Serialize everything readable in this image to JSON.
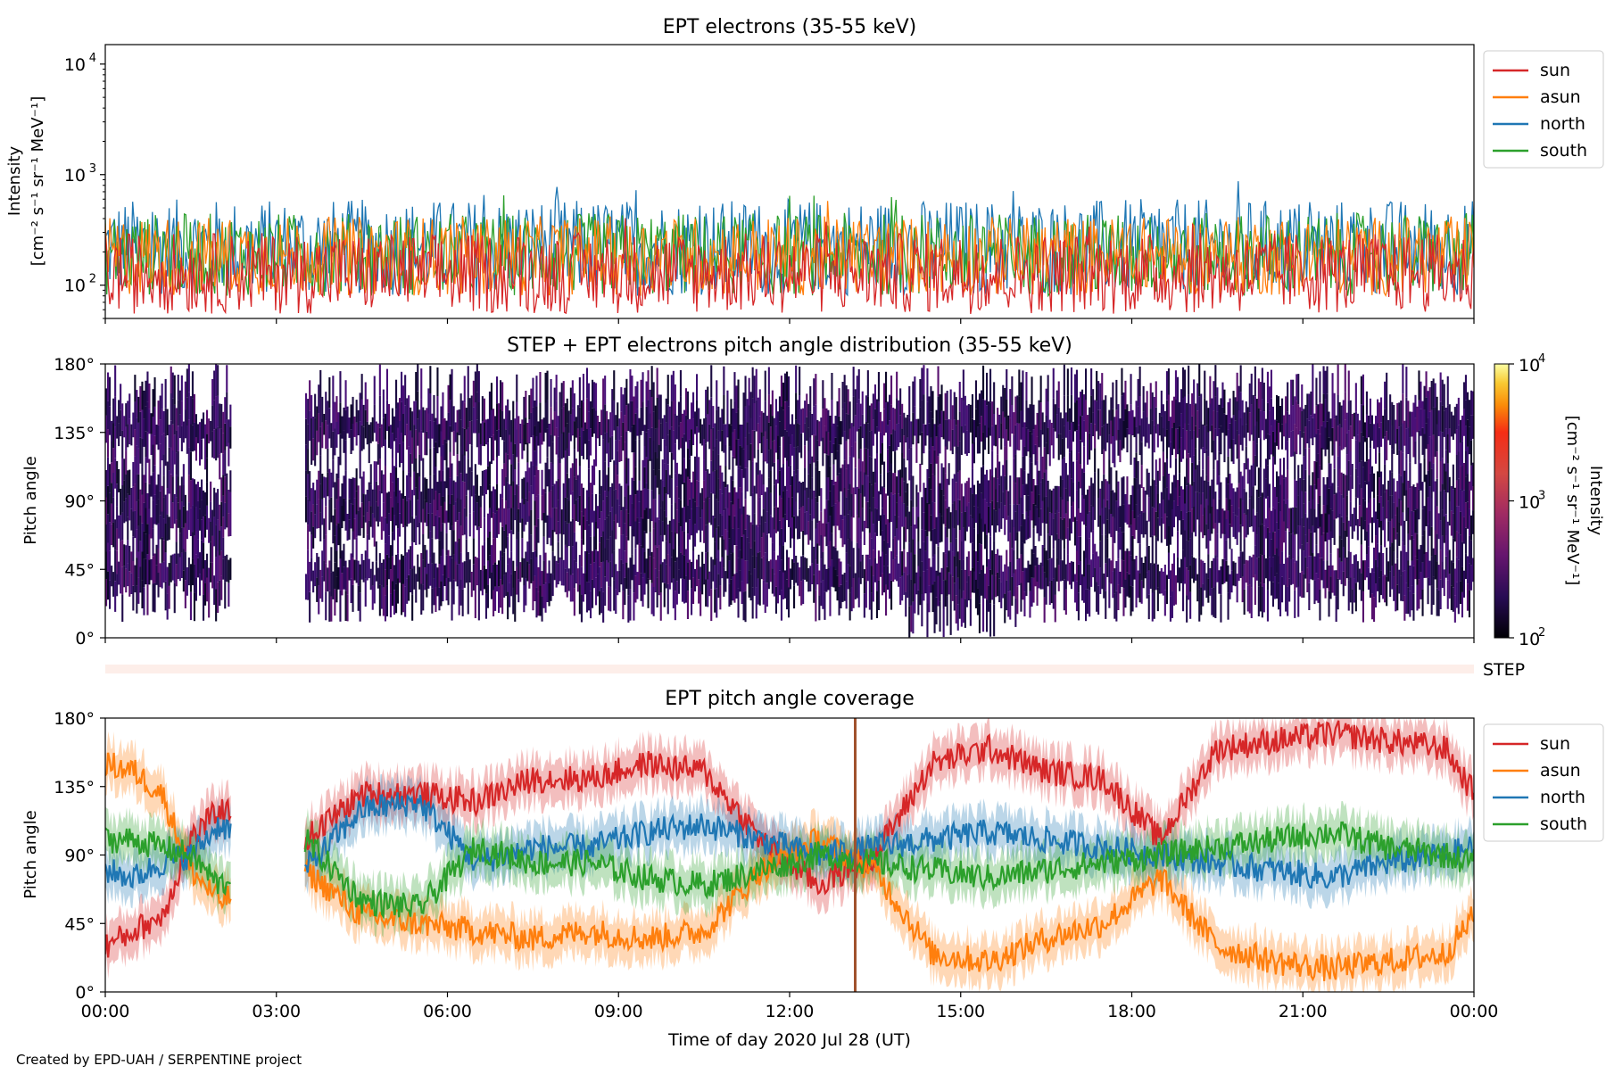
{
  "chart_data": [
    {
      "type": "line",
      "title": "EPT electrons (35-55 keV)",
      "ylabel_line1": "Intensity",
      "ylabel_line2": "[cm⁻² s⁻¹ sr⁻¹ MeV⁻¹]",
      "yscale": "log",
      "ylim": [
        50,
        15000
      ],
      "yticks": [
        {
          "value": 100,
          "base": "10",
          "exp": "2"
        },
        {
          "value": 1000,
          "base": "10",
          "exp": "3"
        },
        {
          "value": 10000,
          "base": "10",
          "exp": "4"
        }
      ],
      "x_range": [
        "2020-07-28 00:00",
        "2020-07-29 00:00"
      ],
      "legend_position": "outside-right",
      "series": [
        {
          "name": "sun",
          "color": "#d62728",
          "typical_range": [
            55,
            300
          ]
        },
        {
          "name": "asun",
          "color": "#ff7f0e",
          "typical_range": [
            80,
            420
          ]
        },
        {
          "name": "north",
          "color": "#1f77b4",
          "typical_range": [
            80,
            600
          ]
        },
        {
          "name": "south",
          "color": "#2ca02c",
          "typical_range": [
            80,
            450
          ]
        }
      ],
      "data_gap": null
    },
    {
      "type": "heatmap",
      "title": "STEP + EPT electrons pitch angle distribution (35-55 keV)",
      "ylabel": "Pitch angle",
      "ylim": [
        0,
        180
      ],
      "yticks": [
        "0°",
        "45°",
        "90°",
        "135°",
        "180°"
      ],
      "colorbar": {
        "label_line1": "Intensity",
        "label_line2": "[cm⁻² s⁻¹ sr⁻¹ MeV⁻¹]",
        "scale": "log",
        "range": [
          100,
          10000
        ],
        "ticks": [
          {
            "value": 100,
            "base": "10",
            "exp": "2"
          },
          {
            "value": 1000,
            "base": "10",
            "exp": "3"
          },
          {
            "value": 10000,
            "base": "10",
            "exp": "4"
          }
        ],
        "colormap": "inferno"
      },
      "data_gap_hours": [
        2.2,
        3.5
      ]
    },
    {
      "type": "bar",
      "label": "STEP",
      "color": "#fdeee9"
    },
    {
      "type": "line",
      "title": "EPT pitch angle coverage",
      "ylabel": "Pitch angle",
      "xlabel": "Time of day 2020 Jul 28 (UT)",
      "ylim": [
        0,
        180
      ],
      "yticks": [
        "0°",
        "45°",
        "90°",
        "135°",
        "180°"
      ],
      "xticks": [
        "00:00",
        "03:00",
        "06:00",
        "09:00",
        "12:00",
        "15:00",
        "18:00",
        "21:00",
        "00:00"
      ],
      "legend_position": "outside-right",
      "data_gap_hours": [
        2.2,
        3.5
      ],
      "marker_hour": 13.15,
      "series": [
        {
          "name": "sun",
          "color": "#d62728",
          "x_hours": [
            0,
            0.5,
            1,
            1.5,
            2,
            3.5,
            4.5,
            5.5,
            6.5,
            7.5,
            8.5,
            9.5,
            10.5,
            11.5,
            12.5,
            13.5,
            14.5,
            15.5,
            16.5,
            17.5,
            18.5,
            19.5,
            20.5,
            21.5,
            22.5,
            23.5,
            24
          ],
          "values": [
            30,
            40,
            50,
            100,
            120,
            100,
            130,
            130,
            125,
            140,
            140,
            150,
            145,
            100,
            70,
            90,
            150,
            160,
            145,
            140,
            100,
            160,
            165,
            170,
            165,
            160,
            130
          ]
        },
        {
          "name": "asun",
          "color": "#ff7f0e",
          "x_hours": [
            0,
            0.5,
            1,
            1.5,
            2,
            3.5,
            4.5,
            5.5,
            6.5,
            7.5,
            8.5,
            9.5,
            10.5,
            11.5,
            12.5,
            13.5,
            14.5,
            15.5,
            16.5,
            17.5,
            18.5,
            19.5,
            20.5,
            21.5,
            22.5,
            23.5,
            24
          ],
          "values": [
            150,
            145,
            130,
            80,
            60,
            80,
            50,
            45,
            40,
            35,
            40,
            35,
            40,
            80,
            100,
            80,
            25,
            20,
            35,
            45,
            75,
            30,
            20,
            15,
            20,
            25,
            50
          ]
        },
        {
          "name": "north",
          "color": "#1f77b4",
          "x_hours": [
            0,
            0.5,
            1,
            1.5,
            2,
            3.5,
            4.5,
            5.5,
            6.5,
            7.5,
            8.5,
            9.5,
            10.5,
            11.5,
            12.5,
            13.5,
            14.5,
            15.5,
            16.5,
            17.5,
            18.5,
            19.5,
            20.5,
            21.5,
            22.5,
            23.5,
            24
          ],
          "values": [
            80,
            75,
            85,
            90,
            110,
            80,
            120,
            125,
            85,
            95,
            95,
            105,
            110,
            100,
            90,
            95,
            100,
            105,
            100,
            95,
            90,
            85,
            80,
            75,
            85,
            90,
            95
          ]
        },
        {
          "name": "south",
          "color": "#2ca02c",
          "x_hours": [
            0,
            0.5,
            1,
            1.5,
            2,
            3.5,
            4.5,
            5.5,
            6.5,
            7.5,
            8.5,
            9.5,
            10.5,
            11.5,
            12.5,
            13.5,
            14.5,
            15.5,
            16.5,
            17.5,
            18.5,
            19.5,
            20.5,
            21.5,
            22.5,
            23.5,
            24
          ],
          "values": [
            100,
            100,
            95,
            90,
            70,
            100,
            60,
            55,
            95,
            85,
            85,
            75,
            70,
            80,
            90,
            85,
            80,
            75,
            80,
            85,
            90,
            95,
            100,
            105,
            95,
            90,
            85
          ]
        }
      ]
    }
  ],
  "credit": "Created by EPD-UAH / SERPENTINE project"
}
